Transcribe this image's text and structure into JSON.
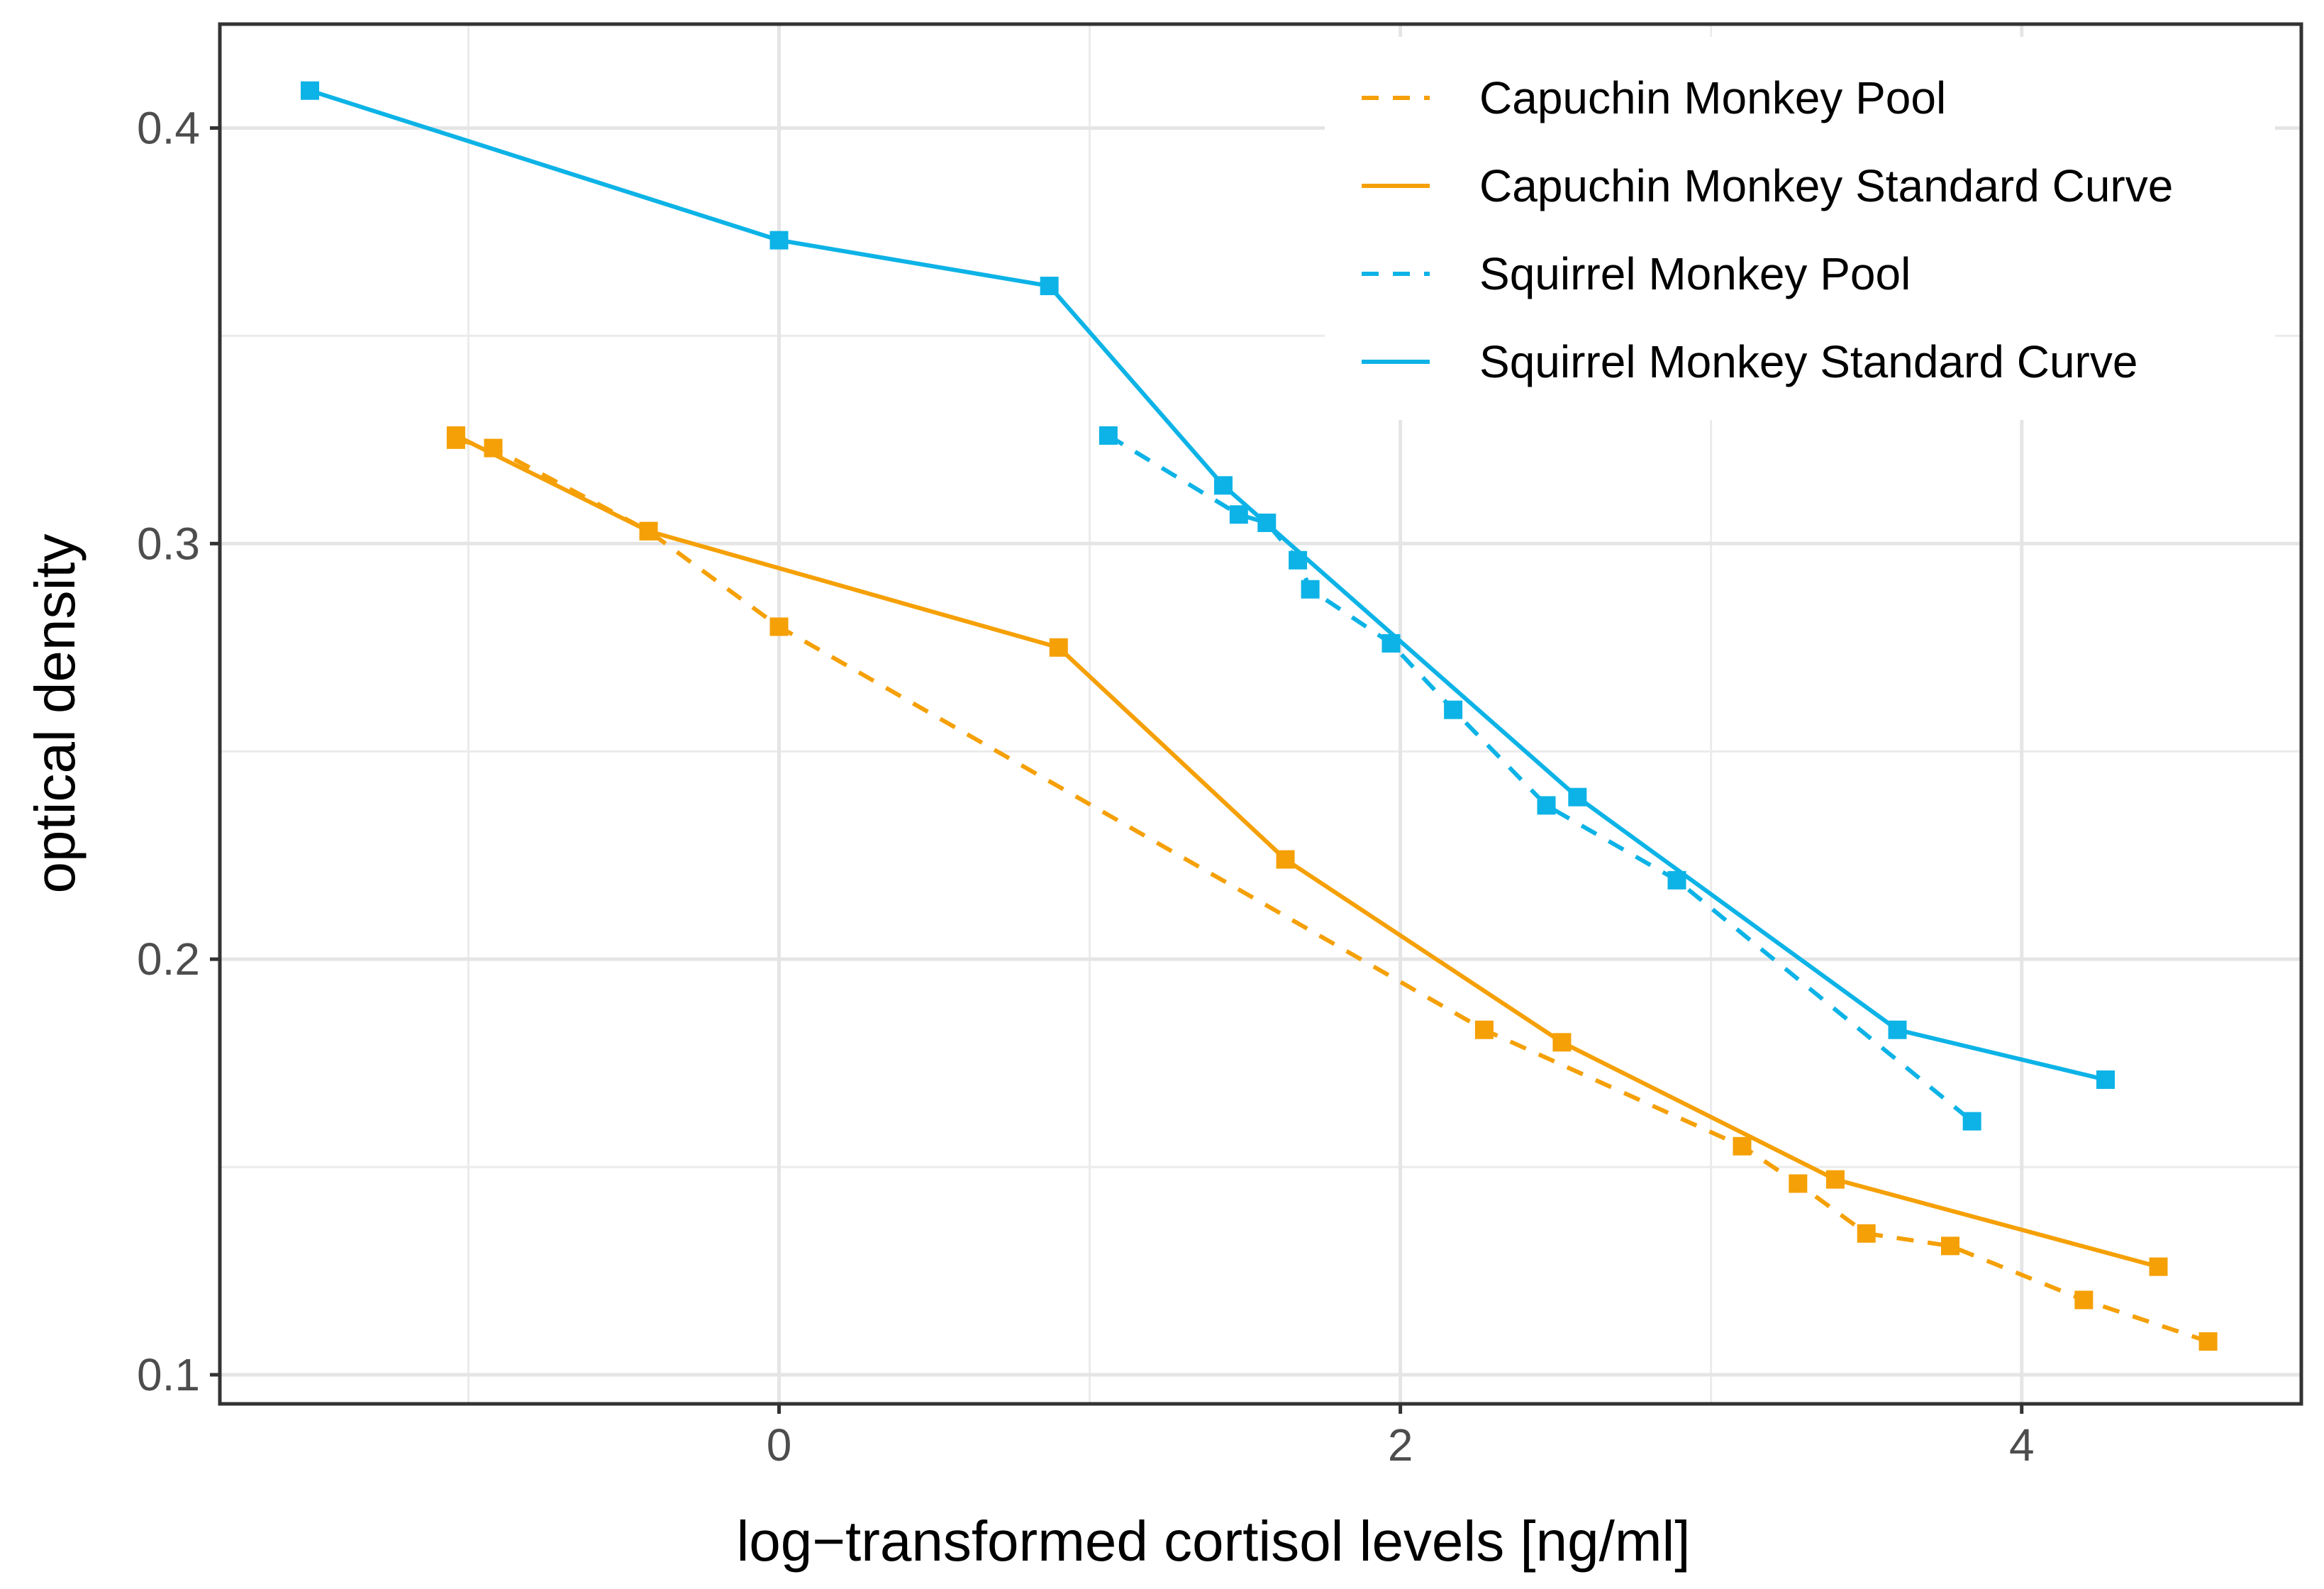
{
  "chart_data": {
    "type": "line",
    "title": "",
    "xlabel": "log−transformed cortisol levels [ng/ml]",
    "ylabel": "optical density",
    "xlim": [
      -1.8,
      4.9
    ],
    "ylim": [
      0.093,
      0.425
    ],
    "x_ticks": [
      0,
      2,
      4
    ],
    "x_tick_labels": [
      "0",
      "2",
      "4"
    ],
    "x_minor_ticks": [
      -1,
      1,
      3
    ],
    "y_ticks": [
      0.1,
      0.2,
      0.3,
      0.4
    ],
    "y_tick_labels": [
      "0.1",
      "0.2",
      "0.3",
      "0.4"
    ],
    "y_minor_ticks": [
      0.15,
      0.25,
      0.35
    ],
    "grid": true,
    "legend_position": "top-right",
    "series": [
      {
        "name": "Capuchin Monkey Pool",
        "color": "#F5A006",
        "line_style": "dashed",
        "marker": "square",
        "points": [
          [
            -1.04,
            0.325
          ],
          [
            -0.92,
            0.323
          ],
          [
            -0.42,
            0.303
          ],
          [
            0.0,
            0.28
          ],
          [
            2.27,
            0.183
          ],
          [
            3.1,
            0.155
          ],
          [
            3.28,
            0.146
          ],
          [
            3.5,
            0.134
          ],
          [
            3.77,
            0.131
          ],
          [
            4.2,
            0.118
          ],
          [
            4.6,
            0.108
          ]
        ]
      },
      {
        "name": "Capuchin Monkey Standard Curve",
        "color": "#F5A006",
        "line_style": "solid",
        "marker": "square",
        "points": [
          [
            -1.04,
            0.326
          ],
          [
            -0.42,
            0.303
          ],
          [
            0.9,
            0.275
          ],
          [
            1.63,
            0.224
          ],
          [
            2.52,
            0.18
          ],
          [
            3.4,
            0.147
          ],
          [
            4.44,
            0.126
          ]
        ]
      },
      {
        "name": "Squirrel Monkey Pool",
        "color": "#0DB3E6",
        "line_style": "dashed",
        "marker": "square",
        "points": [
          [
            1.06,
            0.326
          ],
          [
            1.48,
            0.307
          ],
          [
            1.57,
            0.305
          ],
          [
            1.67,
            0.296
          ],
          [
            1.71,
            0.289
          ],
          [
            1.97,
            0.276
          ],
          [
            2.17,
            0.26
          ],
          [
            2.47,
            0.237
          ],
          [
            2.89,
            0.219
          ],
          [
            3.84,
            0.161
          ]
        ]
      },
      {
        "name": "Squirrel Monkey Standard Curve",
        "color": "#0DB3E6",
        "line_style": "solid",
        "marker": "square",
        "points": [
          [
            -1.51,
            0.409
          ],
          [
            0.0,
            0.373
          ],
          [
            0.87,
            0.362
          ],
          [
            1.43,
            0.314
          ],
          [
            2.57,
            0.239
          ],
          [
            3.6,
            0.183
          ],
          [
            4.27,
            0.171
          ]
        ]
      }
    ]
  }
}
